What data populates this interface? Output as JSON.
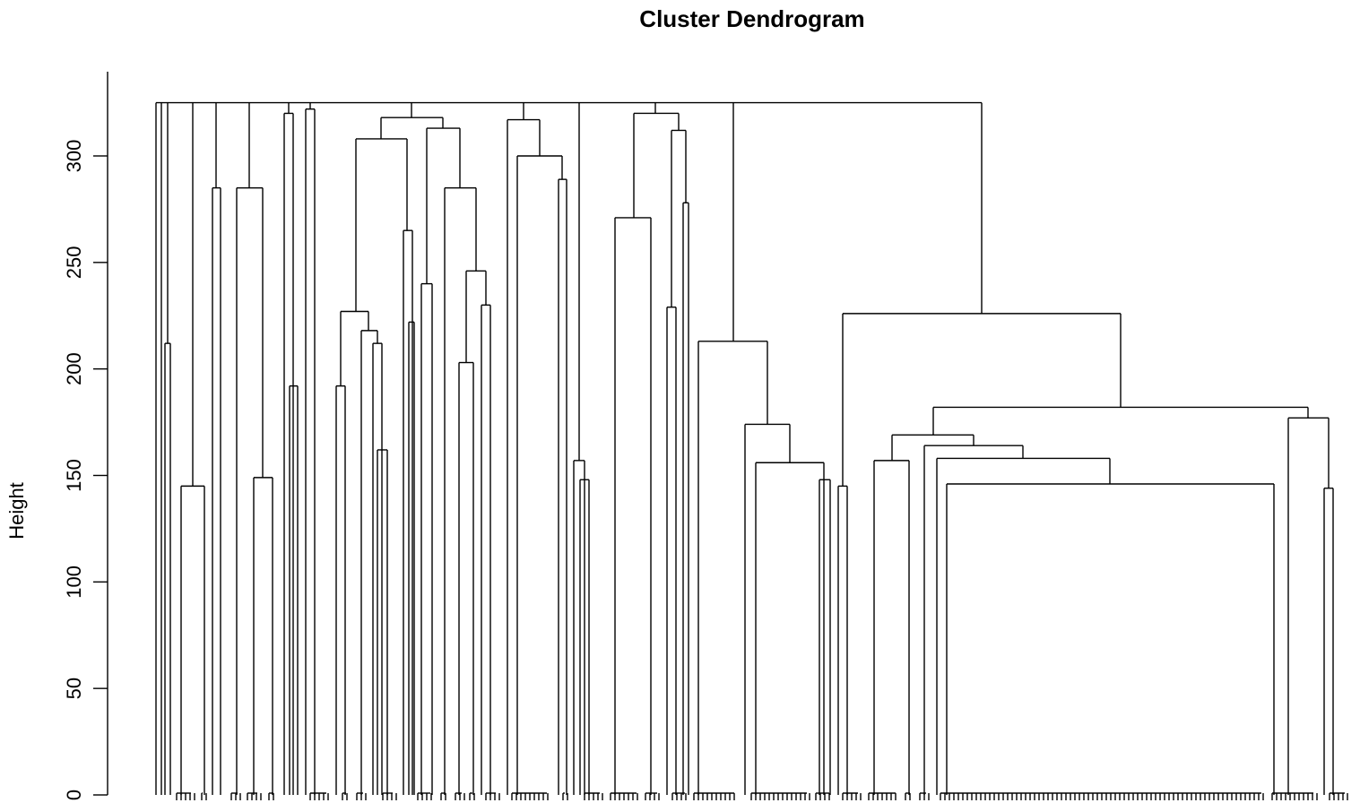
{
  "chart_data": {
    "type": "dendrogram",
    "title": "Cluster Dendrogram",
    "ylabel": "Height",
    "xlabel": "",
    "ylim": [
      0,
      325
    ],
    "yticks": [
      0,
      50,
      100,
      150,
      200,
      250,
      300
    ],
    "root_height": 325,
    "top_level_branch_count": 18,
    "merge_heights_visible": [
      325,
      320,
      318,
      313,
      312,
      308,
      300,
      289,
      285,
      285,
      278,
      271,
      265,
      246,
      240,
      230,
      229,
      227,
      226,
      222,
      218,
      213,
      212,
      212,
      203,
      192,
      192,
      182,
      177,
      174,
      169,
      164,
      162,
      157,
      157,
      156,
      158,
      149,
      148,
      148,
      146,
      145,
      145,
      144
    ],
    "leaf_count_approx": 196,
    "color": "#000000"
  }
}
